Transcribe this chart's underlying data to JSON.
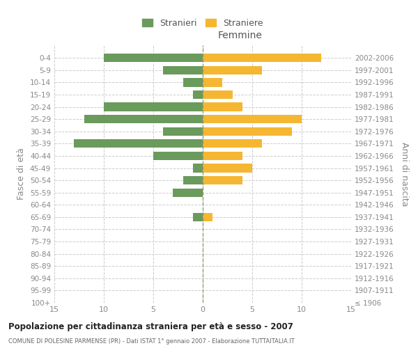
{
  "age_groups": [
    "100+",
    "95-99",
    "90-94",
    "85-89",
    "80-84",
    "75-79",
    "70-74",
    "65-69",
    "60-64",
    "55-59",
    "50-54",
    "45-49",
    "40-44",
    "35-39",
    "30-34",
    "25-29",
    "20-24",
    "15-19",
    "10-14",
    "5-9",
    "0-4"
  ],
  "birth_years": [
    "≤ 1906",
    "1907-1911",
    "1912-1916",
    "1917-1921",
    "1922-1926",
    "1927-1931",
    "1932-1936",
    "1937-1941",
    "1942-1946",
    "1947-1951",
    "1952-1956",
    "1957-1961",
    "1962-1966",
    "1967-1971",
    "1972-1976",
    "1977-1981",
    "1982-1986",
    "1987-1991",
    "1992-1996",
    "1997-2001",
    "2002-2006"
  ],
  "males": [
    0,
    0,
    0,
    0,
    0,
    0,
    0,
    1,
    0,
    3,
    2,
    1,
    5,
    13,
    4,
    12,
    10,
    1,
    2,
    4,
    10
  ],
  "females": [
    0,
    0,
    0,
    0,
    0,
    0,
    0,
    1,
    0,
    0,
    4,
    5,
    4,
    6,
    9,
    10,
    4,
    3,
    2,
    6,
    12
  ],
  "male_color": "#6a9a5c",
  "female_color": "#f5b731",
  "male_label": "Stranieri",
  "female_label": "Straniere",
  "xlim": 15,
  "title": "Popolazione per cittadinanza straniera per età e sesso - 2007",
  "subtitle": "COMUNE DI POLESINE PARMENSE (PR) - Dati ISTAT 1° gennaio 2007 - Elaborazione TUTTAITALIA.IT",
  "ylabel_left": "Fasce di età",
  "ylabel_right": "Anni di nascita",
  "xlabel_female": "Femmine",
  "bg_color": "#ffffff",
  "grid_color": "#cccccc",
  "tick_color": "#888888"
}
